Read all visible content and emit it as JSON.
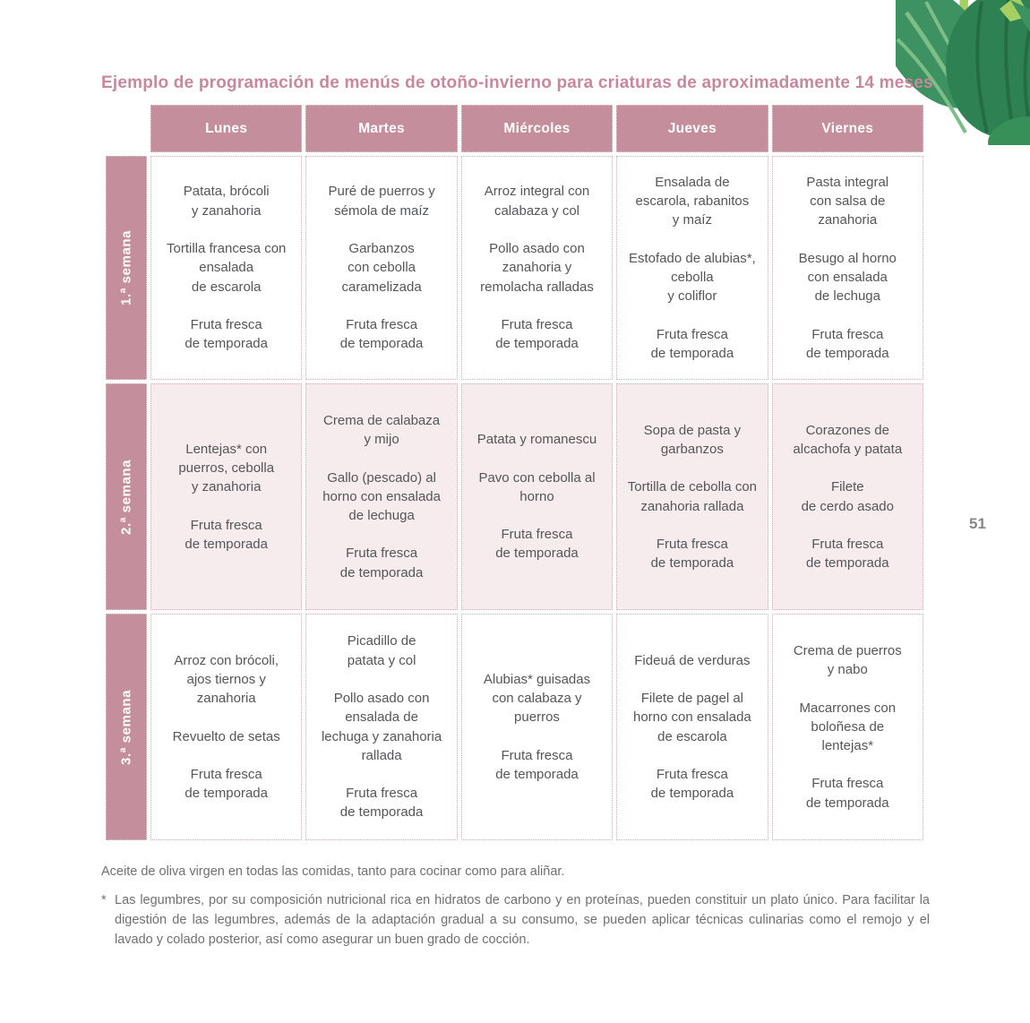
{
  "page": {
    "number": "51"
  },
  "header": {
    "title": "Ejemplo de programación de menús de otoño-invierno para criaturas de aproximadamente 14 meses"
  },
  "table": {
    "columns": [
      "Lunes",
      "Martes",
      "Miércoles",
      "Jueves",
      "Viernes"
    ],
    "rows": [
      {
        "label": "1.ª semana",
        "shaded": false,
        "cells": [
          [
            "Patata, brócoli\ny zanahoria",
            "Tortilla francesa con\nensalada\nde escarola",
            "Fruta fresca\nde temporada"
          ],
          [
            "Puré de puerros y\nsémola de maíz",
            "Garbanzos\ncon cebolla\ncaramelizada",
            "Fruta fresca\nde temporada"
          ],
          [
            "Arroz integral con\ncalabaza y col",
            "Pollo asado con\nzanahoria y\nremolacha ralladas",
            "Fruta fresca\nde temporada"
          ],
          [
            "Ensalada de\nescarola, rabanitos\ny maíz",
            "Estofado de alubias*,\ncebolla\ny coliflor",
            "Fruta fresca\nde temporada"
          ],
          [
            "Pasta integral\ncon salsa de\nzanahoria",
            "Besugo al horno\ncon ensalada\nde lechuga",
            "Fruta fresca\nde temporada"
          ]
        ]
      },
      {
        "label": "2.ª semana",
        "shaded": true,
        "cells": [
          [
            "Lentejas* con\npuerros, cebolla\ny zanahoria",
            "Fruta fresca\nde temporada"
          ],
          [
            "Crema de calabaza\ny mijo",
            "Gallo (pescado) al\nhorno con ensalada\nde lechuga",
            "Fruta fresca\nde temporada"
          ],
          [
            "Patata y romanescu",
            "Pavo con cebolla al\nhorno",
            "Fruta fresca\nde temporada"
          ],
          [
            "Sopa de pasta y\ngarbanzos",
            "Tortilla de cebolla con\nzanahoria rallada",
            "Fruta fresca\nde temporada"
          ],
          [
            "Corazones de\nalcachofa y patata",
            "Filete\nde cerdo asado",
            "Fruta fresca\nde temporada"
          ]
        ]
      },
      {
        "label": "3.ª semana",
        "shaded": false,
        "cells": [
          [
            "Arroz con brócoli,\najos tiernos y\nzanahoria",
            "Revuelto de setas",
            "Fruta fresca\nde temporada"
          ],
          [
            "Picadillo de\npatata y col",
            "Pollo asado con\nensalada de\nlechuga y zanahoria\nrallada",
            "Fruta fresca\nde temporada"
          ],
          [
            "Alubias* guisadas\ncon calabaza y\npuerros",
            "Fruta fresca\nde temporada"
          ],
          [
            "Fideuá de verduras",
            "Filete de pagel al\nhorno con ensalada\nde escarola",
            "Fruta fresca\nde temporada"
          ],
          [
            "Crema de puerros\ny nabo",
            "Macarrones con\nboloñesa de\nlentejas*",
            "Fruta fresca\nde temporada"
          ]
        ]
      }
    ]
  },
  "notes": {
    "olive_oil": "Aceite de oliva virgen en todas las comidas, tanto para cocinar como para aliñar.",
    "legumes_marker": "*",
    "legumes": "Las legumbres, por su composición nutricional rica en hidratos de carbono y en proteínas, pueden constituir un plato único. Para facilitar la digestión de las legumbres, además de la adaptación gradual a su consumo, se pueden aplicar técnicas culinarias como el remojo y el lavado y colado posterior, así como asegurar un buen grado de cocción."
  },
  "colors": {
    "accent_pink": "#c48e9c",
    "title_pink": "#c9879d",
    "row_shade": "#f6ebed",
    "cell_text": "#55565a",
    "note_text": "#6f7073",
    "leaf_dark": "#2e8153",
    "leaf_mid": "#3e9261",
    "leaf_light": "#a5cf62"
  }
}
